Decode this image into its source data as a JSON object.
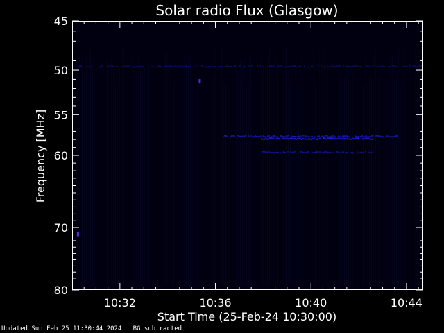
{
  "chart_data": {
    "type": "heatmap",
    "title": "Solar radio Flux (Glasgow)",
    "xlabel": "Start Time (25-Feb-24 10:30:00)",
    "ylabel": "Frequency [MHz]",
    "x_unit": "minutes after 10:30:00",
    "xlim": [
      0,
      14.7
    ],
    "ylim": [
      45,
      80
    ],
    "y_scale": "log",
    "x_ticks": [
      {
        "value": 2,
        "label": "10:32"
      },
      {
        "value": 6,
        "label": "10:36"
      },
      {
        "value": 10,
        "label": "10:40"
      },
      {
        "value": 14,
        "label": "10:44"
      }
    ],
    "y_ticks": [
      {
        "value": 45,
        "label": "45"
      },
      {
        "value": 50,
        "label": "50"
      },
      {
        "value": 55,
        "label": "55"
      },
      {
        "value": 60,
        "label": "60"
      },
      {
        "value": 70,
        "label": "70"
      },
      {
        "value": 80,
        "label": "80"
      }
    ],
    "background_color": "#000010",
    "emission_color": "#2222ff",
    "emission_features": [
      {
        "t_start": 0.0,
        "t_end": 14.7,
        "freq": 49.6,
        "intensity": 0.35
      },
      {
        "t_start": 6.3,
        "t_end": 13.6,
        "freq": 57.6,
        "intensity": 0.7
      },
      {
        "t_start": 7.9,
        "t_end": 12.6,
        "freq": 57.9,
        "intensity": 0.95
      },
      {
        "t_start": 7.9,
        "t_end": 12.6,
        "freq": 59.6,
        "intensity": 0.6
      },
      {
        "t_start": 5.3,
        "t_end": 5.4,
        "freq": 51.2,
        "intensity": 0.8
      },
      {
        "t_start": 0.2,
        "t_end": 0.3,
        "freq": 71.0,
        "intensity": 0.9
      }
    ]
  },
  "footer": {
    "updated": "Updated Sun Feb 25 11:30:44 2024",
    "note": "BG subtracted"
  }
}
